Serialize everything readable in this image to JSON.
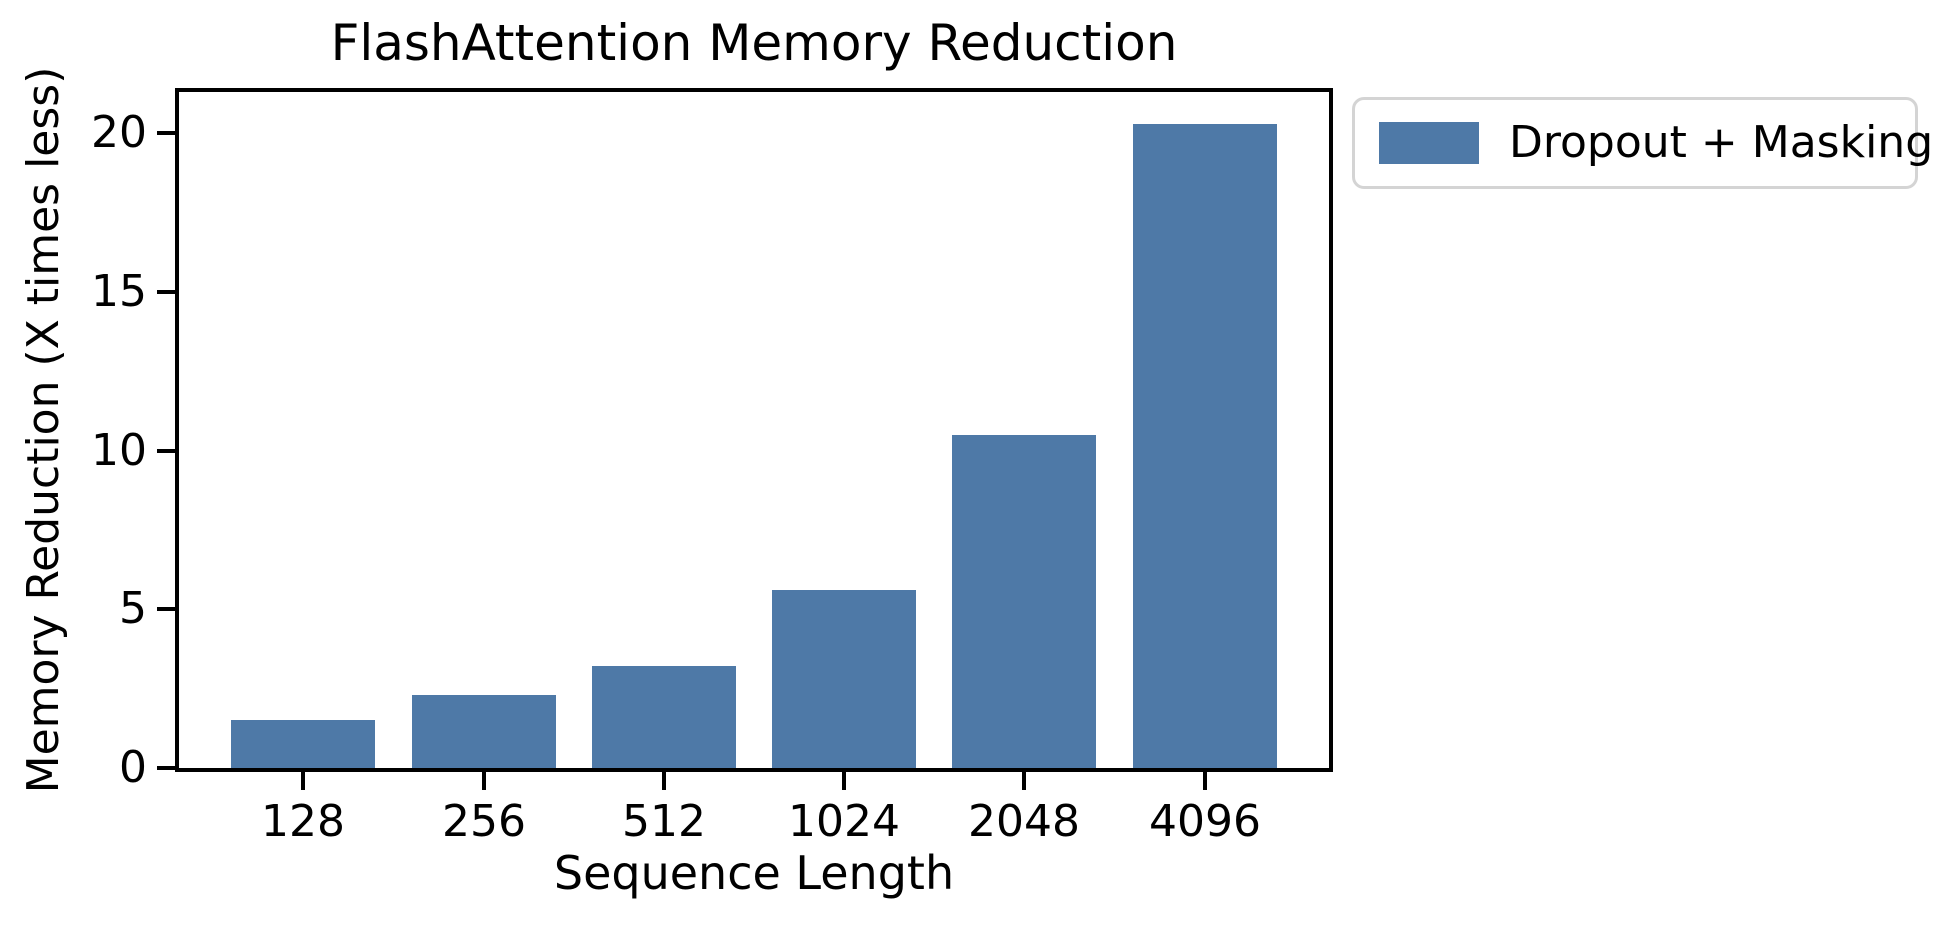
{
  "chart_data": {
    "type": "bar",
    "title": "FlashAttention Memory Reduction",
    "xlabel": "Sequence Length",
    "ylabel": "Memory Reduction (X times less)",
    "categories": [
      "128",
      "256",
      "512",
      "1024",
      "2048",
      "4096"
    ],
    "series": [
      {
        "name": "Dropout + Masking",
        "values": [
          1.5,
          2.3,
          3.2,
          5.6,
          10.5,
          20.3
        ]
      }
    ],
    "yticks": [
      0,
      5,
      10,
      15,
      20
    ],
    "ylim": [
      0,
      21.3
    ],
    "grid": false,
    "legend": {
      "position": "upper-right-outside",
      "entries": [
        "Dropout + Masking"
      ]
    },
    "colors": {
      "bar": "#4E79A7",
      "axis": "#000000",
      "legend_border": "#d4d4d4",
      "background": "#ffffff"
    }
  }
}
